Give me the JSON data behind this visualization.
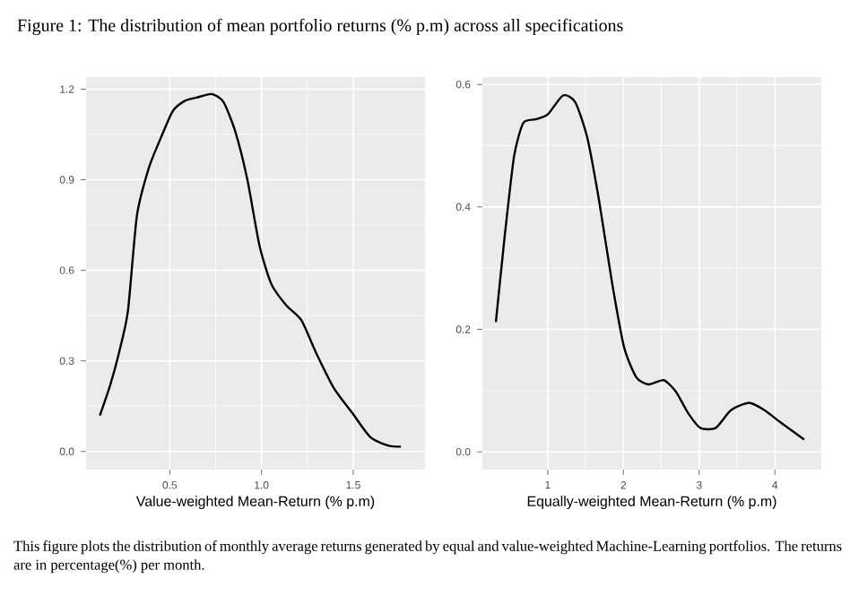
{
  "chart_data": [
    {
      "type": "line",
      "title": "Figure 1: The distribution of mean portfolio returns (% p.m) across all specifications",
      "xlabel": "Value-weighted Mean-Return (% p.m)",
      "annotations": [
        "This figure plots the distribution of monthly average returns generated by equal and value-weighted Machine-Learning portfolios. The returns are in percentage(%) per month."
      ],
      "xlim": [
        0.044,
        1.891
      ],
      "ylim": [
        -0.06,
        1.24
      ],
      "xticks": [
        0.5,
        {
          "value": 1,
          "label": "1.0"
        },
        1.5
      ],
      "yticks": [
        {
          "value": 0,
          "label": "0.0"
        },
        0.3,
        0.6,
        0.9,
        1.2
      ],
      "grid": true,
      "series": [
        {
          "color": "#000000",
          "x": [
            0.119,
            0.174,
            0.223,
            0.272,
            0.321,
            0.386,
            0.451,
            0.516,
            0.581,
            0.647,
            0.728,
            0.793,
            0.858,
            0.923,
            0.989,
            1.054,
            1.135,
            1.217,
            1.298,
            1.396,
            1.493,
            1.591,
            1.689,
            1.76
          ],
          "values": [
            0.119,
            0.217,
            0.326,
            0.465,
            0.781,
            0.939,
            1.038,
            1.127,
            1.161,
            1.172,
            1.184,
            1.157,
            1.058,
            0.9,
            0.682,
            0.554,
            0.484,
            0.435,
            0.326,
            0.208,
            0.129,
            0.049,
            0.02,
            0.016
          ]
        }
      ]
    },
    {
      "type": "line",
      "xlabel": "Equally-weighted Mean-Return (% p.m)",
      "xlim": [
        0.137,
        4.613
      ],
      "ylim": [
        -0.029,
        0.612
      ],
      "xticks": [
        1,
        2,
        3,
        4
      ],
      "yticks": [
        {
          "value": 0,
          "label": "0.0"
        },
        0.2,
        0.4,
        0.6
      ],
      "grid": true,
      "series": [
        {
          "color": "#000000",
          "x": [
            0.315,
            0.435,
            0.556,
            0.677,
            0.839,
            1.0,
            1.202,
            1.363,
            1.524,
            1.685,
            1.847,
            2.008,
            2.169,
            2.331,
            2.532,
            2.694,
            2.855,
            3.016,
            3.218,
            3.419,
            3.661,
            3.863,
            4.065,
            4.387
          ],
          "values": [
            0.212,
            0.356,
            0.483,
            0.537,
            0.543,
            0.551,
            0.582,
            0.571,
            0.512,
            0.405,
            0.278,
            0.171,
            0.122,
            0.11,
            0.117,
            0.098,
            0.063,
            0.039,
            0.039,
            0.068,
            0.08,
            0.068,
            0.049,
            0.02
          ]
        }
      ]
    }
  ]
}
